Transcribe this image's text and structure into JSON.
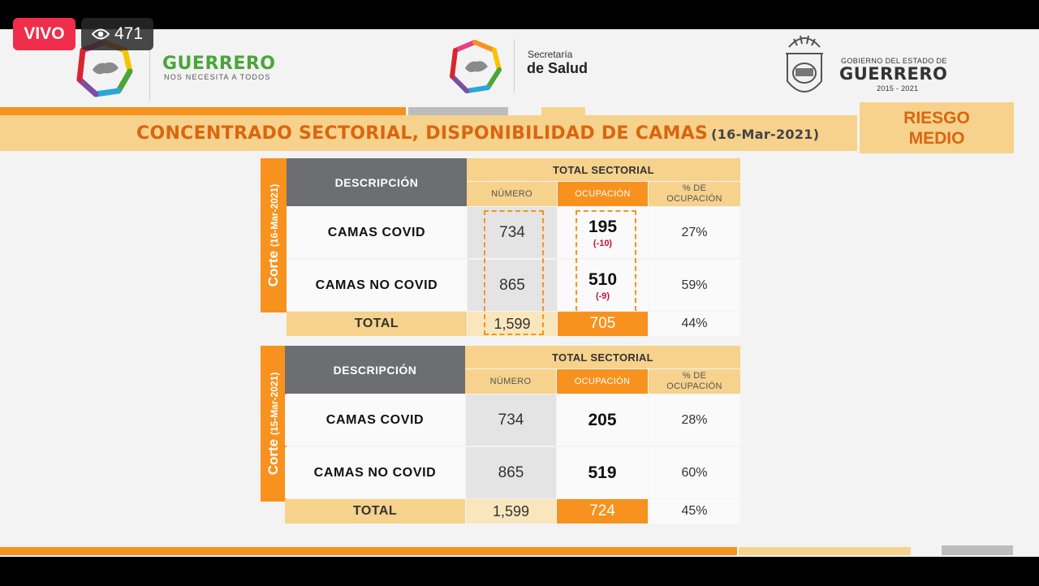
{
  "overlay": {
    "live_label": "VIVO",
    "viewer_count": "471"
  },
  "header": {
    "gro_name": "GUERRERO",
    "gro_tagline": "NOS NECESITA A TODOS",
    "salud_line1": "Secretaría",
    "salud_line2": "de Salud",
    "gob_line1": "GOBIERNO DEL ESTADO DE",
    "gob_line2": "GUERRERO",
    "gob_years": "2015 - 2021"
  },
  "title": {
    "text": "CONCENTRADO SECTORIAL, DISPONIBILIDAD DE CAMAS",
    "date": "(16-Mar-2021)"
  },
  "risk": {
    "line1": "RIESGO",
    "line2": "MEDIO"
  },
  "colors": {
    "orange": "#f7921e",
    "light_orange": "#f6d28c",
    "gray_header": "#6d6e71",
    "title_orange": "#d9660f",
    "delta_red": "#c8102e"
  },
  "tables": [
    {
      "corte_word": "Corte",
      "corte_date": "(16-Mar-2021)",
      "head_desc": "DESCRIPCIÓN",
      "head_total": "TOTAL SECTORIAL",
      "col_numero": "NÚMERO",
      "col_ocupacion": "OCUPACIÓN",
      "col_pct_1": "% DE",
      "col_pct_2": "OCUPACIÓN",
      "rows": [
        {
          "label": "CAMAS COVID",
          "numero": "734",
          "ocupacion": "195",
          "delta": "(-10)",
          "pct": "27%"
        },
        {
          "label": "CAMAS NO COVID",
          "numero": "865",
          "ocupacion": "510",
          "delta": "(-9)",
          "pct": "59%"
        }
      ],
      "total": {
        "label": "TOTAL",
        "numero": "1,599",
        "ocupacion": "705",
        "pct": "44%"
      }
    },
    {
      "corte_word": "Corte",
      "corte_date": "(15-Mar-2021)",
      "head_desc": "DESCRIPCIÓN",
      "head_total": "TOTAL SECTORIAL",
      "col_numero": "NÚMERO",
      "col_ocupacion": "OCUPACIÓN",
      "col_pct_1": "% DE",
      "col_pct_2": "OCUPACIÓN",
      "rows": [
        {
          "label": "CAMAS COVID",
          "numero": "734",
          "ocupacion": "205",
          "pct": "28%"
        },
        {
          "label": "CAMAS NO COVID",
          "numero": "865",
          "ocupacion": "519",
          "pct": "60%"
        }
      ],
      "total": {
        "label": "TOTAL",
        "numero": "1,599",
        "ocupacion": "724",
        "pct": "45%"
      }
    }
  ]
}
